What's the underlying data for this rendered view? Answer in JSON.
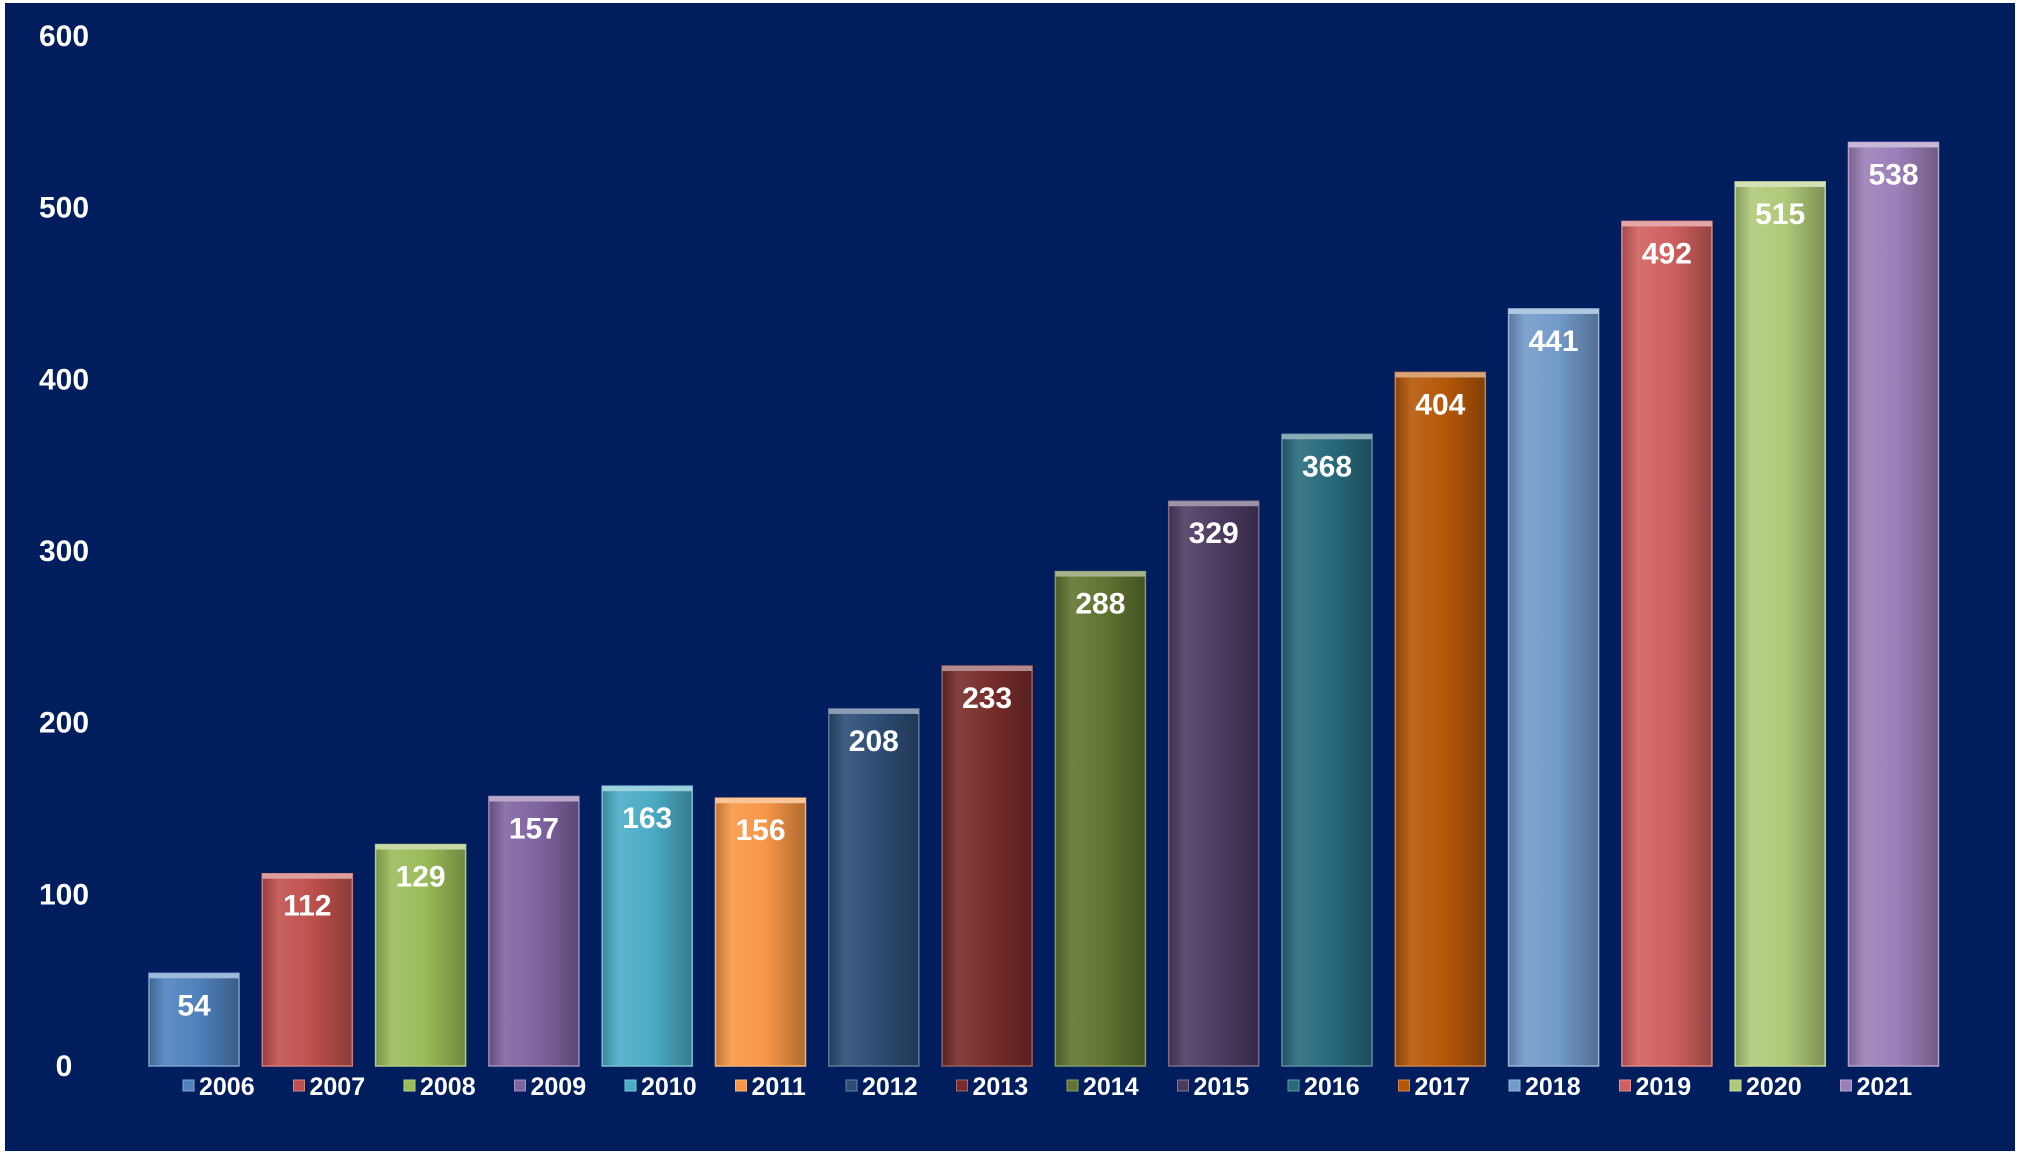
{
  "chart_data": {
    "type": "bar",
    "title": "",
    "xlabel": "",
    "ylabel": "",
    "categories": [
      "2006",
      "2007",
      "2008",
      "2009",
      "2010",
      "2011",
      "2012",
      "2013",
      "2014",
      "2015",
      "2016",
      "2017",
      "2018",
      "2019",
      "2020",
      "2021"
    ],
    "values": [
      54,
      112,
      129,
      157,
      163,
      156,
      208,
      233,
      288,
      329,
      368,
      404,
      441,
      492,
      515,
      538
    ],
    "ylim": [
      0,
      600
    ],
    "yticks": [
      0,
      100,
      200,
      300,
      400,
      500,
      600
    ],
    "grid": false,
    "legend_position": "bottom",
    "data_labels": true,
    "background_color": "#001e5e",
    "bar_colors": [
      "#4f81bd",
      "#c0504d",
      "#9bbb59",
      "#8064a2",
      "#4bacc6",
      "#f79646",
      "#2c4d75",
      "#772c2a",
      "#5f7530",
      "#4d3b62",
      "#276a7c",
      "#b65708",
      "#729aca",
      "#d0605e",
      "#afca78",
      "#9b7fb8"
    ]
  }
}
